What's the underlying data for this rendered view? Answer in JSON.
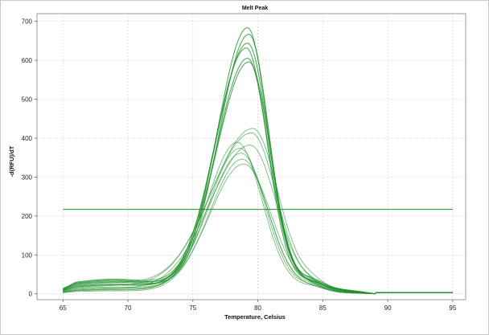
{
  "chart_data": {
    "type": "line",
    "title": "Melt Peak",
    "xlabel": "Temperature, Celsius",
    "ylabel": "-d(RFU)/dT",
    "xlim": [
      63,
      96
    ],
    "ylim": [
      -15,
      720
    ],
    "xticks": [
      "65",
      "70",
      "75",
      "80",
      "85",
      "90",
      "95"
    ],
    "yticks": [
      "0",
      "100",
      "200",
      "300",
      "400",
      "500",
      "600",
      "700"
    ],
    "grid": true,
    "legend": "none",
    "line_color": "#1f8f2a",
    "threshold": {
      "value": 217,
      "x_start": 65,
      "x_end": 95
    },
    "series": [
      {
        "baseline": 28,
        "peak": 678,
        "center": 79.2,
        "w_left": 2.3,
        "w_right": 1.55
      },
      {
        "baseline": 24,
        "peak": 662,
        "center": 79.3,
        "w_left": 2.3,
        "w_right": 1.55
      },
      {
        "baseline": 30,
        "peak": 638,
        "center": 79.2,
        "w_left": 2.4,
        "w_right": 1.6
      },
      {
        "baseline": 20,
        "peak": 628,
        "center": 79.1,
        "w_left": 2.4,
        "w_right": 1.6
      },
      {
        "baseline": 26,
        "peak": 600,
        "center": 79.2,
        "w_left": 2.4,
        "w_right": 1.6
      },
      {
        "baseline": 18,
        "peak": 592,
        "center": 79.3,
        "w_left": 2.5,
        "w_right": 1.65
      },
      {
        "baseline": 22,
        "peak": 420,
        "center": 79.6,
        "w_left": 3.2,
        "w_right": 1.9
      },
      {
        "baseline": 16,
        "peak": 410,
        "center": 79.5,
        "w_left": 3.2,
        "w_right": 1.9
      },
      {
        "baseline": 12,
        "peak": 388,
        "center": 78.4,
        "w_left": 2.3,
        "w_right": 1.9
      },
      {
        "baseline": 10,
        "peak": 380,
        "center": 79.4,
        "w_left": 3.1,
        "w_right": 2.0
      },
      {
        "baseline": 14,
        "peak": 372,
        "center": 78.6,
        "w_left": 2.4,
        "w_right": 1.9
      },
      {
        "baseline": 8,
        "peak": 360,
        "center": 78.7,
        "w_left": 2.5,
        "w_right": 2.0
      },
      {
        "baseline": 6,
        "peak": 345,
        "center": 78.8,
        "w_left": 2.5,
        "w_right": 2.0
      },
      {
        "baseline": 9,
        "peak": 332,
        "center": 78.9,
        "w_left": 2.6,
        "w_right": 2.1
      }
    ]
  }
}
